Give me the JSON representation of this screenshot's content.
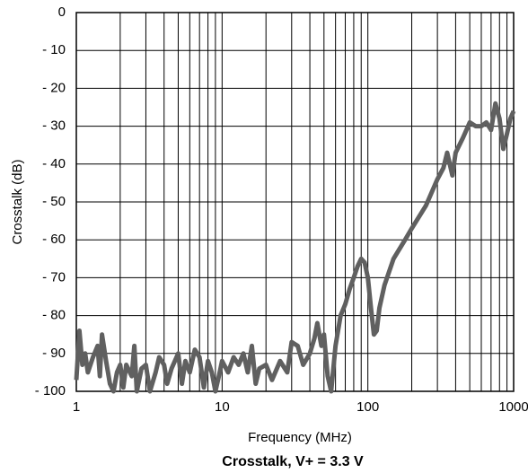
{
  "chart_data": {
    "type": "line",
    "title": "Crosstalk, V+ = 3.3 V",
    "x_label": "Frequency (MHz)",
    "y_label": "Crosstalk (dB)",
    "log_x": true,
    "grid": true,
    "xlim": [
      1,
      1000
    ],
    "ylim": [
      -100,
      0
    ],
    "xticks": [
      1,
      10,
      100,
      1000
    ],
    "xminor": [
      2,
      3,
      4,
      5,
      6,
      7,
      8,
      9,
      20,
      30,
      40,
      50,
      60,
      70,
      80,
      90,
      200,
      300,
      400,
      500,
      600,
      700,
      800,
      900
    ],
    "yticks": [
      0,
      {
        "value": -10,
        "label": "- 10"
      },
      {
        "value": -20,
        "label": "- 20"
      },
      {
        "value": -30,
        "label": "- 30"
      },
      {
        "value": -40,
        "label": "- 40"
      },
      {
        "value": -50,
        "label": "- 50"
      },
      {
        "value": -60,
        "label": "- 60"
      },
      {
        "value": -70,
        "label": "- 70"
      },
      {
        "value": -80,
        "label": "- 80"
      },
      {
        "value": -90,
        "label": "- 90"
      },
      {
        "value": -100,
        "label": "- 100"
      }
    ],
    "series": [
      {
        "name": "Crosstalk",
        "color": "#606060",
        "x": [
          1,
          1.05,
          1.1,
          1.15,
          1.2,
          1.3,
          1.4,
          1.45,
          1.5,
          1.6,
          1.7,
          1.8,
          1.9,
          2,
          2.1,
          2.2,
          2.4,
          2.5,
          2.6,
          2.8,
          3,
          3.2,
          3.5,
          3.7,
          4,
          4.2,
          4.5,
          5,
          5.3,
          5.6,
          6,
          6.5,
          7,
          7.5,
          8,
          8.5,
          9,
          9.5,
          10,
          11,
          12,
          13,
          14,
          15,
          16,
          17,
          18,
          20,
          22,
          25,
          28,
          30,
          33,
          36,
          40,
          43,
          45,
          48,
          50,
          53,
          56,
          60,
          65,
          70,
          75,
          80,
          85,
          90,
          95,
          100,
          105,
          110,
          115,
          120,
          130,
          150,
          180,
          200,
          250,
          300,
          330,
          350,
          380,
          400,
          450,
          500,
          550,
          600,
          650,
          700,
          750,
          800,
          850,
          900,
          950,
          1000
        ],
        "values": [
          -97,
          -84,
          -93,
          -90,
          -95,
          -91,
          -88,
          -96,
          -85,
          -92,
          -98,
          -100,
          -95,
          -93,
          -99,
          -93,
          -96,
          -88,
          -100,
          -94,
          -93,
          -100,
          -95,
          -91,
          -93,
          -98,
          -94,
          -90,
          -98,
          -92,
          -95,
          -89,
          -91,
          -99,
          -92,
          -95,
          -100,
          -96,
          -92,
          -95,
          -91,
          -93,
          -90,
          -95,
          -88,
          -98,
          -94,
          -93,
          -97,
          -92,
          -95,
          -87,
          -88,
          -93,
          -90,
          -86,
          -82,
          -88,
          -85,
          -96,
          -100,
          -88,
          -80,
          -77,
          -73,
          -70,
          -67,
          -65,
          -66,
          -70,
          -78,
          -85,
          -84,
          -78,
          -72,
          -65,
          -60,
          -57,
          -51,
          -44,
          -41,
          -37,
          -43,
          -37,
          -33,
          -29,
          -30,
          -30,
          -29,
          -31,
          -24,
          -28,
          -36,
          -32,
          -28,
          -26
        ]
      }
    ]
  }
}
